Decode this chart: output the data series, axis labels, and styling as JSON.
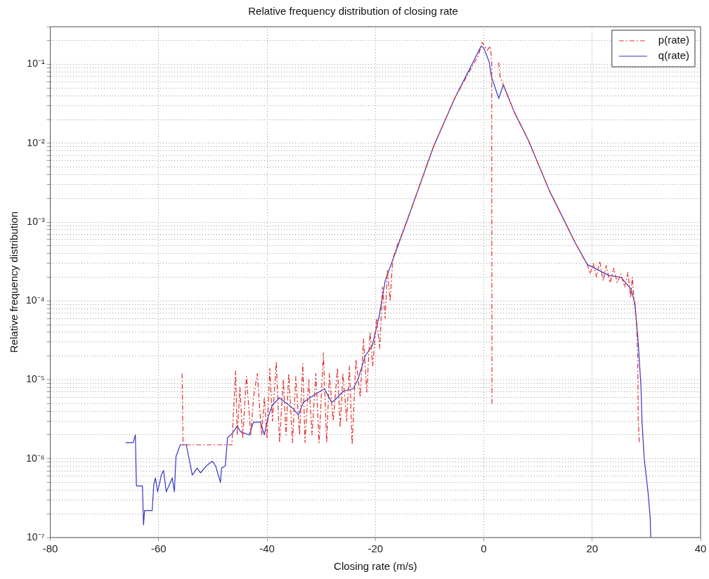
{
  "chart_data": {
    "type": "line",
    "title": "Relative frequency distribution of closing rate",
    "xlabel": "Closing rate (m/s)",
    "ylabel": "Relative frequency distribution",
    "xlim": [
      -80,
      40
    ],
    "xticks": [
      -80,
      -60,
      -40,
      -20,
      0,
      20,
      40
    ],
    "log": true,
    "ylim": [
      1e-07,
      0.3
    ],
    "yticks": [
      {
        "value": 1e-07,
        "label": "10⁻⁷"
      },
      {
        "value": 2e-07,
        "label": null
      },
      {
        "value": 3e-07,
        "label": null
      },
      {
        "value": 4e-07,
        "label": null
      },
      {
        "value": 5e-07,
        "label": null
      },
      {
        "value": 6e-07,
        "label": null
      },
      {
        "value": 7e-07,
        "label": null
      },
      {
        "value": 8e-07,
        "label": null
      },
      {
        "value": 9e-07,
        "label": null
      },
      {
        "value": 1e-06,
        "label": "10⁻⁶"
      },
      {
        "value": 2e-06,
        "label": null
      },
      {
        "value": 3e-06,
        "label": null
      },
      {
        "value": 4e-06,
        "label": null
      },
      {
        "value": 5e-06,
        "label": null
      },
      {
        "value": 6e-06,
        "label": null
      },
      {
        "value": 7e-06,
        "label": null
      },
      {
        "value": 8e-06,
        "label": null
      },
      {
        "value": 9e-06,
        "label": null
      },
      {
        "value": 1e-05,
        "label": "10⁻⁵"
      },
      {
        "value": 2e-05,
        "label": null
      },
      {
        "value": 3e-05,
        "label": null
      },
      {
        "value": 4e-05,
        "label": null
      },
      {
        "value": 5e-05,
        "label": null
      },
      {
        "value": 6e-05,
        "label": null
      },
      {
        "value": 7e-05,
        "label": null
      },
      {
        "value": 8e-05,
        "label": null
      },
      {
        "value": 9e-05,
        "label": null
      },
      {
        "value": 0.0001,
        "label": "10⁻⁴"
      },
      {
        "value": 0.0002,
        "label": null
      },
      {
        "value": 0.0003,
        "label": null
      },
      {
        "value": 0.0004,
        "label": null
      },
      {
        "value": 0.0005,
        "label": null
      },
      {
        "value": 0.0006,
        "label": null
      },
      {
        "value": 0.0007,
        "label": null
      },
      {
        "value": 0.0008,
        "label": null
      },
      {
        "value": 0.0009,
        "label": null
      },
      {
        "value": 0.001,
        "label": "10⁻³"
      },
      {
        "value": 0.002,
        "label": null
      },
      {
        "value": 0.003,
        "label": null
      },
      {
        "value": 0.004,
        "label": null
      },
      {
        "value": 0.005,
        "label": null
      },
      {
        "value": 0.006,
        "label": null
      },
      {
        "value": 0.007,
        "label": null
      },
      {
        "value": 0.008,
        "label": null
      },
      {
        "value": 0.009,
        "label": null
      },
      {
        "value": 0.01,
        "label": "10⁻²"
      },
      {
        "value": 0.02,
        "label": null
      },
      {
        "value": 0.03,
        "label": null
      },
      {
        "value": 0.04,
        "label": null
      },
      {
        "value": 0.05,
        "label": null
      },
      {
        "value": 0.06,
        "label": null
      },
      {
        "value": 0.07,
        "label": null
      },
      {
        "value": 0.08,
        "label": null
      },
      {
        "value": 0.09,
        "label": null
      },
      {
        "value": 0.1,
        "label": "10⁻¹"
      },
      {
        "value": 0.2,
        "label": null
      },
      {
        "value": 0.3,
        "label": null
      }
    ],
    "grid": true,
    "legend": "top right",
    "marker": "none",
    "series": [
      {
        "name": "p(rate)",
        "color": "#e0302a",
        "line_style": "dashed",
        "x": [
          -55.7,
          -55.6,
          -55.5,
          -46.5,
          -45.8,
          -45.5,
          -45,
          -44.5,
          -43.8,
          -43,
          -42.5,
          -41.8,
          -41,
          -40.5,
          -40,
          -39.5,
          -39,
          -38.3,
          -37.7,
          -37,
          -36.5,
          -36,
          -35.3,
          -34.7,
          -34,
          -33.4,
          -33,
          -32.3,
          -31.7,
          -31,
          -30.4,
          -29.6,
          -29,
          -28.5,
          -27.8,
          -27,
          -26.5,
          -26,
          -25.3,
          -24.8,
          -24.3,
          -23.6,
          -22.8,
          -22.2,
          -21.6,
          -21,
          -20.5,
          -19.8,
          -19.2,
          -18.7,
          -18.2,
          -17.8,
          -17.3,
          -16.8,
          -16,
          -15.3,
          -13.5,
          -9.3,
          -5.3,
          -1,
          -0.3,
          0.6,
          0.9,
          1.2,
          1.45,
          1.5,
          2,
          2.75,
          3,
          3.4,
          5.6,
          8.2,
          12.1,
          16.9,
          19.1,
          19.6,
          20.2,
          20.8,
          21.4,
          22,
          22.6,
          23.3,
          24,
          24.6,
          25.3,
          26,
          26.6,
          27.1,
          27.4,
          27.8,
          28.2,
          28.4,
          28.5,
          28.7
        ],
        "values": [
          1.2e-05,
          5e-06,
          1.5e-06,
          1.5e-06,
          1.3e-05,
          2e-06,
          8e-06,
          1.8e-06,
          1.1e-05,
          2e-06,
          6e-06,
          1.2e-05,
          2e-06,
          6e-06,
          1.8e-06,
          1.4e-05,
          3e-06,
          1.7e-05,
          1.6e-06,
          1e-05,
          2e-06,
          1.2e-05,
          1.6e-06,
          1.1e-05,
          2e-06,
          1.6e-05,
          1.6e-06,
          1e-05,
          2e-06,
          1.2e-05,
          1.6e-06,
          2.2e-05,
          1.6e-06,
          1.2e-05,
          3e-06,
          1.4e-05,
          2.5e-06,
          1.2e-05,
          3e-06,
          1.5e-05,
          1.5e-06,
          1.8e-05,
          6e-06,
          3.3e-05,
          7e-06,
          4e-05,
          1.5e-05,
          6e-05,
          2.5e-05,
          0.00015,
          6e-05,
          0.00025,
          0.0001,
          0.00034,
          0.0005,
          0.00065,
          0.0014,
          0.009,
          0.038,
          0.13,
          0.19,
          0.15,
          0.16,
          0.17,
          0.11,
          5e-06,
          null,
          0.106,
          0.07,
          0.06,
          0.025,
          0.011,
          0.0025,
          0.00054,
          0.00029,
          0.00022,
          0.0003,
          0.0002,
          0.00032,
          0.00018,
          0.00028,
          0.00017,
          0.00026,
          0.00017,
          0.00022,
          0.00015,
          0.00023,
          0.00011,
          0.0002,
          9e-05,
          5e-05,
          2e-05,
          3e-06,
          1.6e-06
        ]
      },
      {
        "name": "q(rate)",
        "color": "#3535c8",
        "line_style": "solid",
        "x": [
          -66.1,
          -64.7,
          -64.3,
          -64.2,
          -64.1,
          -63,
          -62.8,
          -62.6,
          -61.2,
          -60.9,
          -60.6,
          -60.2,
          -59.5,
          -59.1,
          -58.6,
          -57.5,
          -57.1,
          -56.8,
          -56,
          -54.9,
          -54.3,
          -53.8,
          -52.9,
          -52.3,
          -51.2,
          -50.1,
          -49.5,
          -48.6,
          -48.4,
          -47.7,
          -47.3,
          -46.4,
          -45.5,
          -44.9,
          -43.3,
          -42.5,
          -41.2,
          -40.5,
          -39.8,
          -39,
          -37.7,
          -35.5,
          -34.2,
          -33.3,
          -31.5,
          -29.4,
          -28.1,
          -27.4,
          -25.9,
          -24.1,
          -23.2,
          -21.9,
          -20.6,
          -19.3,
          -18.2,
          -14.1,
          -9.3,
          -5.3,
          -0.5,
          0,
          1,
          1.4,
          2.75,
          3.6,
          5.6,
          8.2,
          12.1,
          16.9,
          19.1,
          23.1,
          25.3,
          27.2,
          27.9,
          28.5,
          29,
          29.2,
          29.6,
          30.3,
          30.7,
          30.8
        ],
        "values": [
          1.6e-06,
          1.6e-06,
          2e-06,
          9.3e-07,
          4.5e-07,
          4.5e-07,
          1.45e-07,
          2.2e-07,
          2.2e-07,
          4.7e-07,
          5.7e-07,
          3.8e-07,
          6.2e-07,
          7.1e-07,
          3.8e-07,
          5.7e-07,
          3.8e-07,
          1.07e-06,
          1.5e-06,
          1.5e-06,
          9.3e-07,
          6.2e-07,
          7.6e-07,
          6.6e-07,
          8.1e-07,
          9.3e-07,
          8.1e-07,
          5e-07,
          7.6e-07,
          8.1e-07,
          1.84e-06,
          2.1e-06,
          2.6e-06,
          2.2e-06,
          2e-06,
          2.9e-06,
          2.9e-06,
          2e-06,
          3.4e-06,
          4.8e-06,
          5.9e-06,
          4.5e-06,
          3.6e-06,
          5.2e-06,
          6.3e-06,
          7.7e-06,
          5.2e-06,
          5.6e-06,
          7.2e-06,
          7.7e-06,
          1.02e-05,
          2e-05,
          2.7e-05,
          6.5e-05,
          0.00018,
          0.00107,
          0.009,
          0.038,
          0.17,
          0.16,
          0.107,
          0.07,
          0.037,
          0.055,
          0.025,
          0.011,
          0.0025,
          0.00054,
          0.00029,
          0.00021,
          0.0002,
          0.00014,
          9.1e-05,
          2.9e-05,
          8.3e-06,
          2.9e-06,
          1e-06,
          3.8e-07,
          1.8e-07,
          1e-07
        ]
      }
    ]
  }
}
